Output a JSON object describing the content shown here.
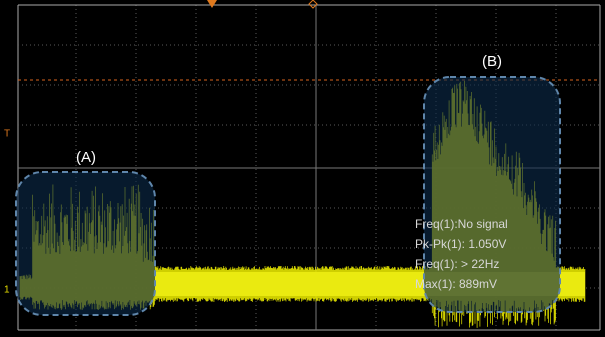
{
  "labels": {
    "a": "(A)",
    "b": "(B)"
  },
  "measurements": [
    "Freq(1):No signal",
    "Pk-Pk(1): 1.050V",
    "Freq(1): > 22Hz",
    "Max(1): 889mV"
  ],
  "markers": {
    "trigger": "T",
    "channel": "1"
  }
}
